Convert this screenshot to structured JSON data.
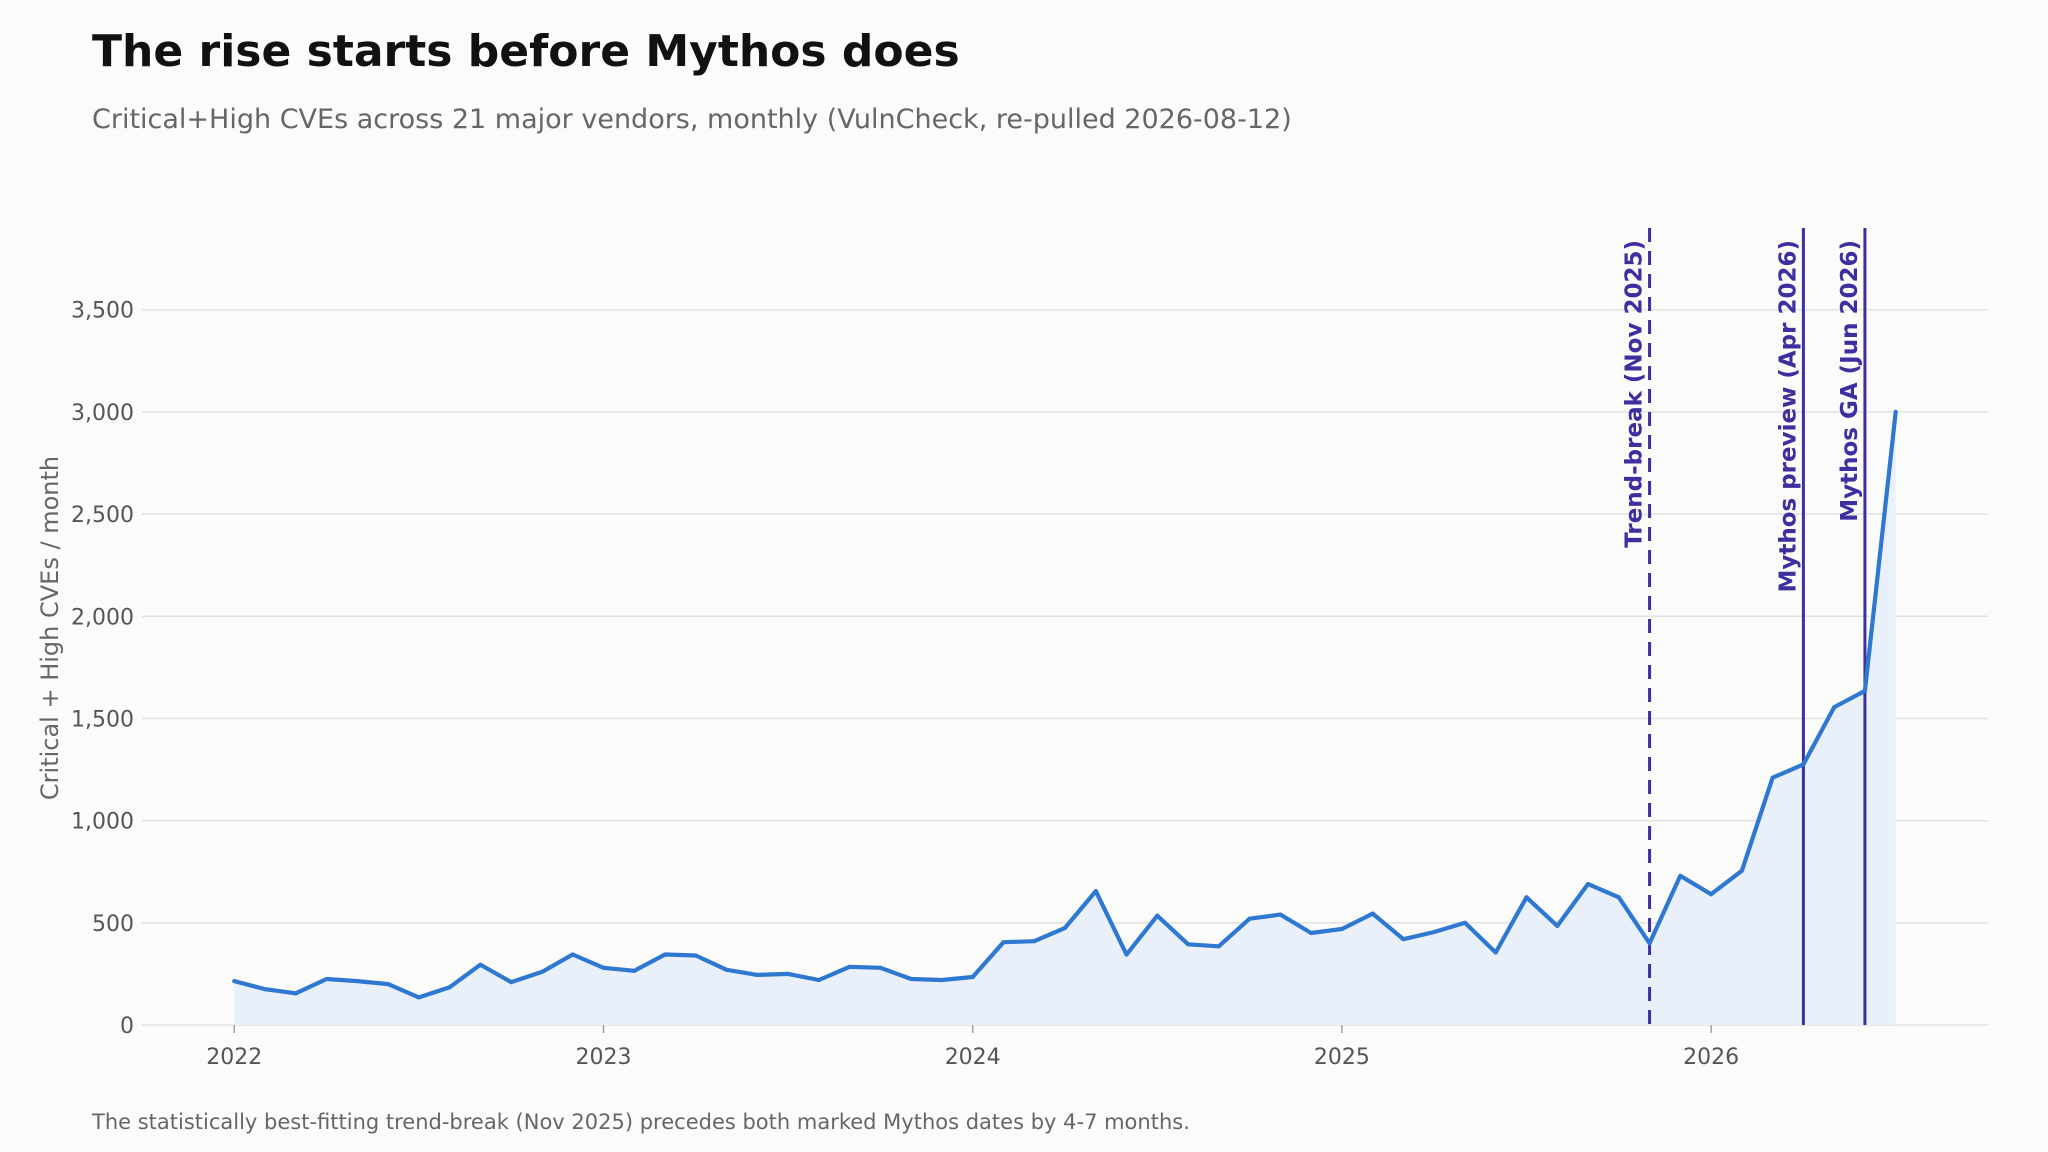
{
  "header": {
    "title": "The rise starts before Mythos does",
    "subtitle": "Critical+High CVEs across 21 major vendors, monthly (VulnCheck, re-pulled 2026-08-12)"
  },
  "footnote": "The statistically best-fitting trend-break (Nov 2025) precedes both marked Mythos dates by 4-7 months.",
  "colors": {
    "line": "#2e78d2",
    "area": "#eaf0fa",
    "marker": "#3c2fa0",
    "grid": "#e3e3e3",
    "background": "#fbfbf9"
  },
  "chart_data": {
    "type": "line",
    "title": "The rise starts before Mythos does",
    "ylabel": "Critical + High CVEs / month",
    "xlabel": "",
    "xlim": [
      "2021-10",
      "2026-10"
    ],
    "ylim": [
      0,
      3900
    ],
    "yticks": [
      0,
      500,
      1000,
      1500,
      2000,
      2500,
      3000,
      3500
    ],
    "ytick_labels": [
      "0",
      "500",
      "1,000",
      "1,500",
      "2,000",
      "2,500",
      "3,000",
      "3,500"
    ],
    "xticks": [
      "2022-01",
      "2023-01",
      "2024-01",
      "2025-01",
      "2026-01"
    ],
    "xtick_labels": [
      "2022",
      "2023",
      "2024",
      "2025",
      "2026"
    ],
    "grid": "horizontal",
    "area_fill": true,
    "series": [
      {
        "x": [
          "2022-01",
          "2022-02",
          "2022-03",
          "2022-04",
          "2022-05",
          "2022-06",
          "2022-07",
          "2022-08",
          "2022-09",
          "2022-10",
          "2022-11",
          "2022-12",
          "2023-01",
          "2023-02",
          "2023-03",
          "2023-04",
          "2023-05",
          "2023-06",
          "2023-07",
          "2023-08",
          "2023-09",
          "2023-10",
          "2023-11",
          "2023-12",
          "2024-01",
          "2024-02",
          "2024-03",
          "2024-04",
          "2024-05",
          "2024-06",
          "2024-07",
          "2024-08",
          "2024-09",
          "2024-10",
          "2024-11",
          "2024-12",
          "2025-01",
          "2025-02",
          "2025-03",
          "2025-04",
          "2025-05",
          "2025-06",
          "2025-07",
          "2025-08",
          "2025-09",
          "2025-10",
          "2025-11",
          "2025-12",
          "2026-01",
          "2026-02",
          "2026-03",
          "2026-04",
          "2026-05",
          "2026-06",
          "2026-07"
        ],
        "values": [
          215,
          175,
          155,
          225,
          215,
          200,
          135,
          185,
          295,
          210,
          260,
          345,
          280,
          265,
          345,
          340,
          270,
          245,
          250,
          220,
          285,
          280,
          225,
          220,
          235,
          405,
          410,
          475,
          655,
          345,
          535,
          395,
          385,
          520,
          540,
          450,
          470,
          545,
          420,
          455,
          500,
          355,
          625,
          485,
          690,
          625,
          400,
          730,
          640,
          755,
          1210,
          1275,
          1555,
          1635,
          3000
        ]
      }
    ],
    "markers": [
      {
        "date": "2025-11",
        "label": "Trend-break (Nov 2025)",
        "style": "dashed"
      },
      {
        "date": "2026-04",
        "label": "Mythos preview (Apr 2026)",
        "style": "solid"
      },
      {
        "date": "2026-06",
        "label": "Mythos GA (Jun 2026)",
        "style": "solid"
      }
    ]
  }
}
